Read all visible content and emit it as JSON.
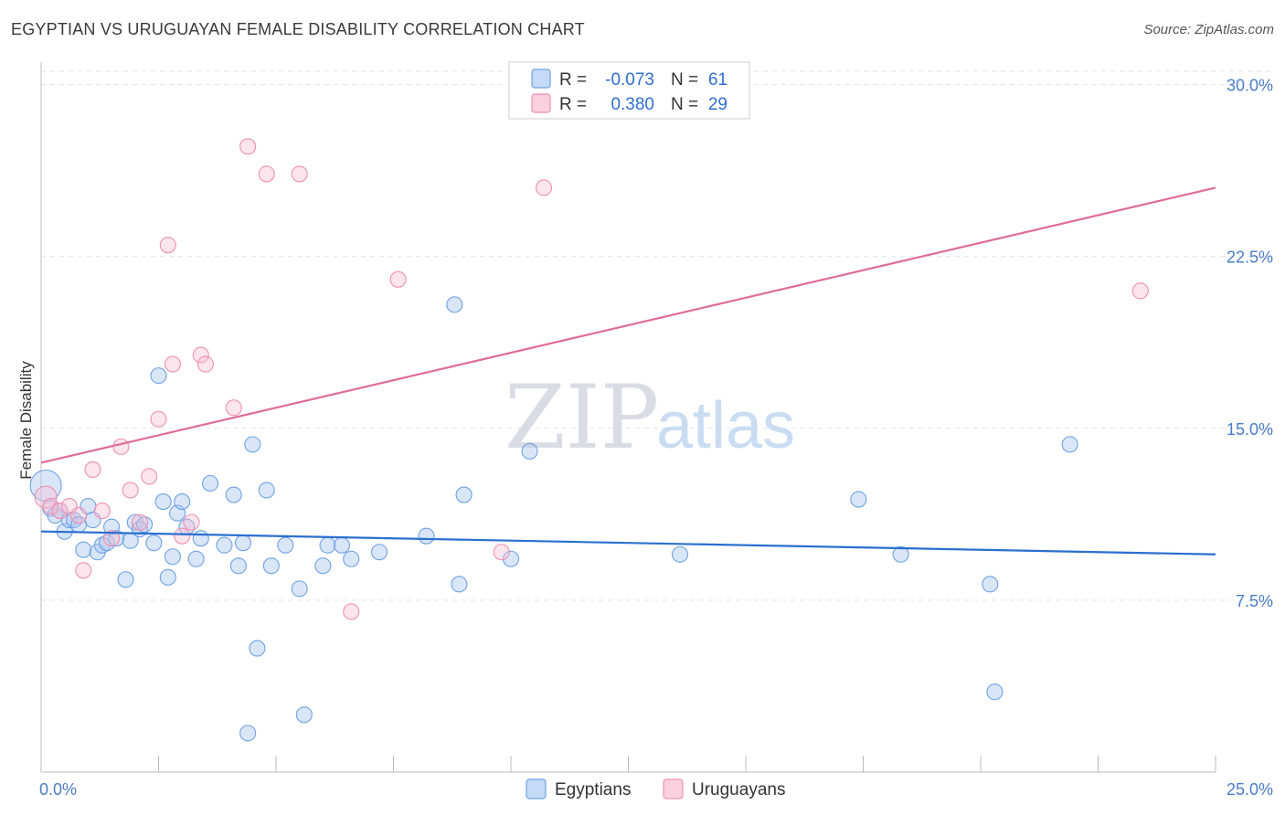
{
  "header": {
    "title": "EGYPTIAN VS URUGUAYAN FEMALE DISABILITY CORRELATION CHART",
    "source": "Source: ZipAtlas.com"
  },
  "watermark": {
    "zip": "ZIP",
    "atlas": "atlas"
  },
  "legend": {
    "rows": [
      {
        "r_label": "R =",
        "r_value": "-0.073",
        "n_label": "N =",
        "n_value": "61",
        "color": "#6fa1e6"
      },
      {
        "r_label": "R =",
        "r_value": "0.380",
        "n_label": "N =",
        "n_value": "29",
        "color": "#f08fb0"
      }
    ]
  },
  "chart_data": {
    "type": "scatter",
    "title": "EGYPTIAN VS URUGUAYAN FEMALE DISABILITY CORRELATION CHART",
    "xlabel": "",
    "ylabel": "Female Disability",
    "xlim": [
      0,
      25
    ],
    "ylim": [
      0,
      31.5
    ],
    "x_tick_labels": [
      "0.0%",
      "25.0%"
    ],
    "y_ticks": [
      7.5,
      15.0,
      22.5,
      30.0
    ],
    "y_tick_labels": [
      "7.5%",
      "15.0%",
      "22.5%",
      "30.0%"
    ],
    "grid": true,
    "legend_position": "top-center",
    "series": [
      {
        "name": "Egyptians",
        "color": "#6fa1e6",
        "trend": [
          [
            0,
            10.5
          ],
          [
            25,
            9.5
          ]
        ],
        "points": [
          [
            0.1,
            12.5
          ],
          [
            0.2,
            11.5
          ],
          [
            0.3,
            11.2
          ],
          [
            0.4,
            11.4
          ],
          [
            0.5,
            10.5
          ],
          [
            0.6,
            11.0
          ],
          [
            0.7,
            11.0
          ],
          [
            0.8,
            10.8
          ],
          [
            0.9,
            9.7
          ],
          [
            1.0,
            11.6
          ],
          [
            1.1,
            11.0
          ],
          [
            1.2,
            9.6
          ],
          [
            1.3,
            9.9
          ],
          [
            1.4,
            10.0
          ],
          [
            1.5,
            10.7
          ],
          [
            1.6,
            10.2
          ],
          [
            1.8,
            8.4
          ],
          [
            1.9,
            10.1
          ],
          [
            2.0,
            10.9
          ],
          [
            2.1,
            10.6
          ],
          [
            2.2,
            10.8
          ],
          [
            2.4,
            10.0
          ],
          [
            2.5,
            17.3
          ],
          [
            2.6,
            11.8
          ],
          [
            2.7,
            8.5
          ],
          [
            2.8,
            9.4
          ],
          [
            2.9,
            11.3
          ],
          [
            3.0,
            11.8
          ],
          [
            3.1,
            10.7
          ],
          [
            3.3,
            9.3
          ],
          [
            3.4,
            10.2
          ],
          [
            3.6,
            12.6
          ],
          [
            3.9,
            9.9
          ],
          [
            4.1,
            12.1
          ],
          [
            4.2,
            9.0
          ],
          [
            4.3,
            10.0
          ],
          [
            4.4,
            1.7
          ],
          [
            4.5,
            14.3
          ],
          [
            4.6,
            5.4
          ],
          [
            4.8,
            12.3
          ],
          [
            4.9,
            9.0
          ],
          [
            5.2,
            9.9
          ],
          [
            5.5,
            8.0
          ],
          [
            5.6,
            2.5
          ],
          [
            6.0,
            9.0
          ],
          [
            6.1,
            9.9
          ],
          [
            6.4,
            9.9
          ],
          [
            6.6,
            9.3
          ],
          [
            7.2,
            9.6
          ],
          [
            8.2,
            10.3
          ],
          [
            8.8,
            20.4
          ],
          [
            8.9,
            8.2
          ],
          [
            9.0,
            12.1
          ],
          [
            10.0,
            9.3
          ],
          [
            10.4,
            14.0
          ],
          [
            13.6,
            9.5
          ],
          [
            17.4,
            11.9
          ],
          [
            18.3,
            9.5
          ],
          [
            20.2,
            8.2
          ],
          [
            20.3,
            3.5
          ],
          [
            21.9,
            14.3
          ]
        ]
      },
      {
        "name": "Uruguayans",
        "color": "#f08fb0",
        "trend": [
          [
            0,
            13.5
          ],
          [
            25,
            25.5
          ]
        ],
        "points": [
          [
            0.1,
            12.0
          ],
          [
            0.2,
            11.6
          ],
          [
            0.4,
            11.4
          ],
          [
            0.6,
            11.6
          ],
          [
            0.8,
            11.2
          ],
          [
            0.9,
            8.8
          ],
          [
            1.1,
            13.2
          ],
          [
            1.3,
            11.4
          ],
          [
            1.5,
            10.2
          ],
          [
            1.7,
            14.2
          ],
          [
            1.9,
            12.3
          ],
          [
            2.1,
            10.9
          ],
          [
            2.3,
            12.9
          ],
          [
            2.5,
            15.4
          ],
          [
            2.7,
            23.0
          ],
          [
            2.8,
            17.8
          ],
          [
            3.0,
            10.3
          ],
          [
            3.2,
            10.9
          ],
          [
            3.4,
            18.2
          ],
          [
            3.5,
            17.8
          ],
          [
            4.1,
            15.9
          ],
          [
            4.4,
            27.3
          ],
          [
            4.8,
            26.1
          ],
          [
            5.5,
            26.1
          ],
          [
            6.6,
            7.0
          ],
          [
            7.6,
            21.5
          ],
          [
            9.8,
            9.6
          ],
          [
            10.7,
            25.5
          ],
          [
            23.4,
            21.0
          ]
        ]
      }
    ]
  }
}
